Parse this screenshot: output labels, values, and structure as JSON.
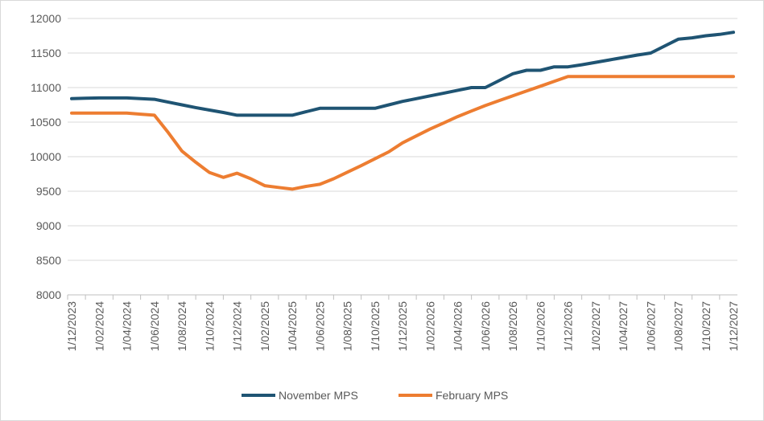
{
  "chart_data": {
    "type": "line",
    "x": [
      "1/12/2023",
      "1/01/2024",
      "1/02/2024",
      "1/03/2024",
      "1/04/2024",
      "1/05/2024",
      "1/06/2024",
      "1/07/2024",
      "1/08/2024",
      "1/09/2024",
      "1/10/2024",
      "1/11/2024",
      "1/12/2024",
      "1/01/2025",
      "1/02/2025",
      "1/03/2025",
      "1/04/2025",
      "1/05/2025",
      "1/06/2025",
      "1/07/2025",
      "1/08/2025",
      "1/09/2025",
      "1/10/2025",
      "1/11/2025",
      "1/12/2025",
      "1/01/2026",
      "1/02/2026",
      "1/03/2026",
      "1/04/2026",
      "1/05/2026",
      "1/06/2026",
      "1/07/2026",
      "1/08/2026",
      "1/09/2026",
      "1/10/2026",
      "1/11/2026",
      "1/12/2026",
      "1/01/2027",
      "1/02/2027",
      "1/03/2027",
      "1/04/2027",
      "1/05/2027",
      "1/06/2027",
      "1/07/2027",
      "1/08/2027",
      "1/09/2027",
      "1/10/2027",
      "1/11/2027",
      "1/12/2027"
    ],
    "tick_labels": [
      "1/12/2023",
      "1/02/2024",
      "1/04/2024",
      "1/06/2024",
      "1/08/2024",
      "1/10/2024",
      "1/12/2024",
      "1/02/2025",
      "1/04/2025",
      "1/06/2025",
      "1/08/2025",
      "1/10/2025",
      "1/12/2025",
      "1/02/2026",
      "1/04/2026",
      "1/06/2026",
      "1/08/2026",
      "1/10/2026",
      "1/12/2026",
      "1/02/2027",
      "1/04/2027",
      "1/06/2027",
      "1/08/2027",
      "1/10/2027",
      "1/12/2027"
    ],
    "series": [
      {
        "name": "November MPS",
        "color": "#1f5473",
        "values": [
          10840,
          10845,
          10850,
          10850,
          10850,
          10840,
          10830,
          10790,
          10750,
          10710,
          10675,
          10640,
          10600,
          10600,
          10600,
          10600,
          10600,
          10650,
          10700,
          10700,
          10700,
          10700,
          10700,
          10750,
          10800,
          10840,
          10880,
          10920,
          10960,
          11000,
          11000,
          11100,
          11200,
          11250,
          11250,
          11300,
          11300,
          11330,
          11365,
          11400,
          11435,
          11470,
          11500,
          11600,
          11700,
          11720,
          11750,
          11770,
          11800
        ]
      },
      {
        "name": "February MPS",
        "color": "#ed7d31",
        "values": [
          10630,
          10630,
          10630,
          10630,
          10630,
          10615,
          10600,
          10350,
          10080,
          9920,
          9770,
          9700,
          9760,
          9680,
          9580,
          9555,
          9530,
          9570,
          9600,
          9680,
          9775,
          9870,
          9970,
          10070,
          10200,
          10300,
          10400,
          10490,
          10580,
          10660,
          10740,
          10810,
          10880,
          10950,
          11020,
          11090,
          11160,
          11160,
          11160,
          11160,
          11160,
          11160,
          11160,
          11160,
          11160,
          11160,
          11160,
          11160,
          11160
        ]
      }
    ],
    "y_ticks": [
      "12000",
      "11500",
      "11000",
      "10500",
      "10000",
      "9500",
      "9000",
      "8500",
      "8000"
    ],
    "ylim": [
      8000,
      12000
    ],
    "xlim": [
      "1/12/2023",
      "1/12/2027"
    ],
    "grid": "horizontal",
    "legend": "bottom-center"
  }
}
